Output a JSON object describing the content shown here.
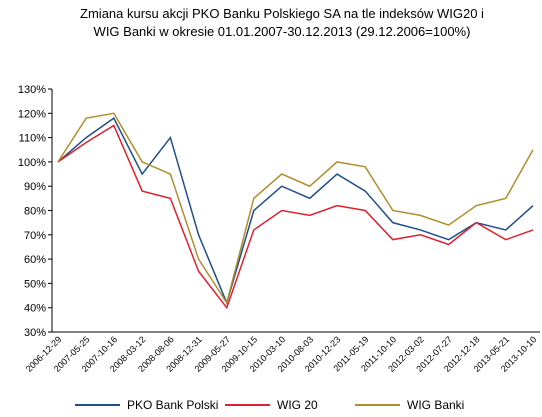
{
  "chart_data": {
    "type": "line",
    "title": "Zmiana kursu  akcji PKO Banku Polskiego SA na tle indeksów WIG20  i",
    "subtitle": "WIG Banki w okresie 01.01.2007-30.12.2013   (29.12.2006=100%)",
    "x": [
      "2006-12-29",
      "2007-05-25",
      "2007-10-16",
      "2008-03-12",
      "2008-08-06",
      "2008-12-31",
      "2009-05-27",
      "2009-10-15",
      "2010-03-10",
      "2010-08-03",
      "2010-12-23",
      "2011-05-19",
      "2011-10-10",
      "2012-03-02",
      "2012-07-27",
      "2012-12-18",
      "2013-05-21",
      "2013-10-10"
    ],
    "series": [
      {
        "name": "PKO Bank Polski",
        "color": "#1f4e8c",
        "values": [
          100,
          110,
          118,
          95,
          110,
          70,
          42,
          80,
          90,
          85,
          95,
          88,
          75,
          72,
          68,
          75,
          72,
          82
        ]
      },
      {
        "name": "WIG 20",
        "color": "#e0202e",
        "values": [
          100,
          108,
          115,
          88,
          85,
          55,
          40,
          72,
          80,
          78,
          82,
          80,
          68,
          70,
          66,
          75,
          68,
          72
        ]
      },
      {
        "name": "WIG Banki",
        "color": "#b08d2a",
        "values": [
          100,
          118,
          120,
          100,
          95,
          60,
          42,
          85,
          95,
          90,
          100,
          98,
          80,
          78,
          74,
          82,
          85,
          105
        ]
      }
    ],
    "ylim": [
      30,
      130
    ],
    "yticks": [
      {
        "value": 30,
        "label": "30%"
      },
      {
        "value": 40,
        "label": "40%"
      },
      {
        "value": 50,
        "label": "50%"
      },
      {
        "value": 60,
        "label": "60%"
      },
      {
        "value": 70,
        "label": "70%"
      },
      {
        "value": 80,
        "label": "80%"
      },
      {
        "value": 90,
        "label": "90%"
      },
      {
        "value": 100,
        "label": "100%"
      },
      {
        "value": 110,
        "label": "110%"
      },
      {
        "value": 120,
        "label": "120%"
      },
      {
        "value": 130,
        "label": "130%"
      }
    ],
    "legend": "bottom"
  }
}
